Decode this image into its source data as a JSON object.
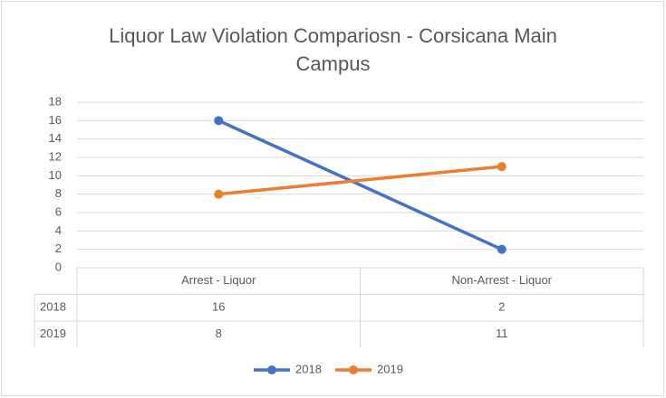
{
  "chart_data": {
    "type": "line",
    "title": "Liquor Law Violation Compariosn - Corsicana Main Campus",
    "categories": [
      "Arrest - Liquor",
      "Non-Arrest - Liquor"
    ],
    "series": [
      {
        "name": "2018",
        "color": "#4472c4",
        "values": [
          16,
          2
        ]
      },
      {
        "name": "2019",
        "color": "#ed7d31",
        "values": [
          8,
          11
        ]
      }
    ],
    "ylim": [
      0,
      18
    ],
    "yticks": [
      0,
      2,
      4,
      6,
      8,
      10,
      12,
      14,
      16,
      18
    ],
    "grid": true,
    "legend": "bottom",
    "data_table": true
  }
}
